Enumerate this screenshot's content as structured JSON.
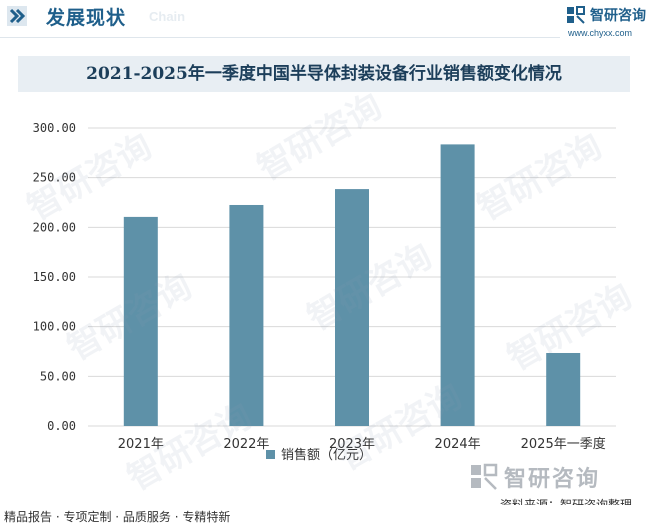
{
  "header": {
    "title": "发展现状",
    "subtitle": "Chain",
    "logo_name": "智研咨询",
    "logo_url": "www.chyxx.com"
  },
  "title_band": {
    "text": "2021-2025年一季度中国半导体封装设备行业销售额变化情况"
  },
  "watermark": {
    "text": "智研咨询"
  },
  "chart_data": {
    "type": "bar",
    "title": "2021-2025年一季度中国半导体封装设备行业销售额变化情况",
    "categories": [
      "2021年",
      "2022年",
      "2023年",
      "2024年",
      "2025年一季度"
    ],
    "series": [
      {
        "name": "销售额（亿元）",
        "values": [
          210.5,
          222.5,
          238.5,
          283.5,
          73.5
        ]
      }
    ],
    "ylim": [
      0,
      300
    ],
    "yticks": [
      "0.00",
      "50.00",
      "100.00",
      "150.00",
      "200.00",
      "250.00",
      "300.00"
    ],
    "grid": true,
    "legend": "bottom-center",
    "colors": {
      "bar": "#5e91a8",
      "grid": "#d9d9d9"
    }
  },
  "source": {
    "text": "资料来源：智研咨询整理",
    "logo_name": "智研咨询"
  },
  "footer": {
    "text": "精品报告 · 专项定制 · 品质服务 · 专精特新"
  }
}
